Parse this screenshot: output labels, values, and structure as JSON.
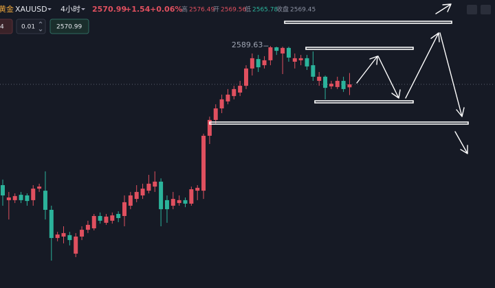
{
  "header": {
    "symbol_cn": "黄金",
    "symbol": "XAUUSD",
    "interval": "4小时",
    "price": 2570.99,
    "change": "+1.54",
    "change_pct": "+0.06%",
    "high_label": "高",
    "high": "2576.49",
    "open_label": "开",
    "open": "2569.56",
    "low_label": "低",
    "low": "2565.78",
    "close_label": "收盘",
    "close": "2569.45"
  },
  "toolbar": {
    "left_field": "4",
    "step": "0.01",
    "price_field": "2570.99"
  },
  "chart_data": {
    "type": "candlestick",
    "annotation": "2589.63",
    "ylim": [
      2472,
      2612
    ],
    "up_color": "#e0505f",
    "down_color": "#2bb39b",
    "open": [
      2522.0,
      2514.7,
      2514.7,
      2517.3,
      2517.0,
      2514.7,
      2520.3,
      2519.3,
      2510.0,
      2496.3,
      2497.0,
      2497.7,
      2488.7,
      2497.0,
      2500.3,
      2501.0,
      2507.0,
      2503.7,
      2504.7,
      2508.0,
      2507.0,
      2512.0,
      2515.3,
      2517.0,
      2519.3,
      2521.3,
      2523.7,
      2514.7,
      2512.0,
      2513.3,
      2514.7,
      2513.0,
      2519.3,
      2519.3,
      2546.0,
      2553.7,
      2559.3,
      2562.7,
      2565.3,
      2567.0,
      2570.3,
      2578.7,
      2583.3,
      2580.3,
      2582.7,
      2589.0,
      2586.0,
      2588.7,
      2582.0,
      2582.7,
      2583.7,
      2580.3,
      2572.7,
      2574.7,
      2570.0,
      2569.7,
      2572.7,
      2569.56
    ],
    "close": [
      2517.0,
      2516.0,
      2516.7,
      2514.7,
      2514.3,
      2520.3,
      2521.3,
      2510.0,
      2496.3,
      2498.0,
      2498.7,
      2495.3,
      2497.0,
      2500.3,
      2502.7,
      2507.0,
      2504.7,
      2506.7,
      2507.3,
      2506.0,
      2513.7,
      2517.0,
      2518.7,
      2520.3,
      2522.7,
      2523.7,
      2510.3,
      2510.3,
      2515.3,
      2514.7,
      2513.0,
      2520.0,
      2520.7,
      2546.0,
      2553.7,
      2559.3,
      2563.7,
      2566.0,
      2568.7,
      2570.3,
      2578.7,
      2583.7,
      2579.3,
      2582.7,
      2589.0,
      2587.3,
      2588.7,
      2584.0,
      2583.7,
      2583.7,
      2579.7,
      2574.7,
      2574.7,
      2569.3,
      2571.3,
      2572.7,
      2568.7,
      2570.99
    ],
    "high": [
      2524.7,
      2518.7,
      2518.0,
      2518.7,
      2518.0,
      2522.0,
      2522.7,
      2528.7,
      2512.0,
      2499.3,
      2502.0,
      2499.3,
      2498.7,
      2502.0,
      2504.7,
      2508.0,
      2508.7,
      2508.0,
      2508.7,
      2509.3,
      2517.0,
      2518.7,
      2522.0,
      2522.7,
      2527.0,
      2528.7,
      2525.3,
      2517.0,
      2518.7,
      2517.0,
      2516.0,
      2521.3,
      2522.0,
      2547.0,
      2555.3,
      2561.3,
      2566.0,
      2568.7,
      2570.3,
      2572.7,
      2580.3,
      2586.0,
      2585.3,
      2584.7,
      2589.63,
      2589.3,
      2589.3,
      2589.3,
      2586.0,
      2585.3,
      2585.3,
      2587.0,
      2577.0,
      2575.3,
      2572.7,
      2574.7,
      2574.7,
      2576.49
    ],
    "low": [
      2512.0,
      2505.3,
      2513.3,
      2513.3,
      2512.0,
      2512.0,
      2518.7,
      2505.3,
      2485.3,
      2494.7,
      2493.7,
      2492.7,
      2487.0,
      2495.3,
      2498.7,
      2500.0,
      2503.3,
      2502.7,
      2503.3,
      2504.0,
      2502.0,
      2510.3,
      2513.7,
      2515.3,
      2518.0,
      2518.7,
      2502.0,
      2503.7,
      2510.3,
      2512.0,
      2511.3,
      2512.0,
      2514.7,
      2515.3,
      2542.0,
      2552.0,
      2557.0,
      2561.3,
      2563.7,
      2565.3,
      2568.7,
      2575.3,
      2577.0,
      2578.7,
      2580.3,
      2585.3,
      2576.0,
      2582.0,
      2578.7,
      2580.3,
      2578.0,
      2572.7,
      2570.3,
      2563.7,
      2568.7,
      2568.7,
      2567.3,
      2565.78
    ]
  }
}
